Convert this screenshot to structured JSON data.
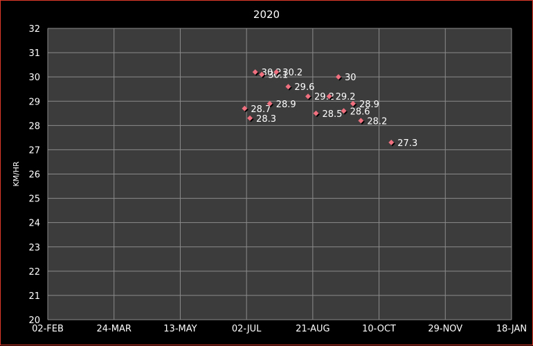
{
  "chart_data": {
    "type": "scatter",
    "title": "2020",
    "xlabel": "",
    "ylabel": "KM/HR",
    "x_ticks": [
      "02-FEB",
      "24-MAR",
      "13-MAY",
      "02-JUL",
      "21-AUG",
      "10-OCT",
      "29-NOV",
      "18-JAN"
    ],
    "xlim": [
      "2020-02-02",
      "2021-01-18"
    ],
    "ylim": [
      20,
      32
    ],
    "y_ticks": [
      20,
      21,
      22,
      23,
      24,
      25,
      26,
      27,
      28,
      29,
      30,
      31,
      32
    ],
    "grid": true,
    "legend": "none",
    "series": [
      {
        "points": [
          {
            "x": "2020-06-30",
            "y": 28.7,
            "label": "28.7"
          },
          {
            "x": "2020-07-04",
            "y": 28.3,
            "label": "28.3"
          },
          {
            "x": "2020-07-08",
            "y": 30.2,
            "label": "30.2"
          },
          {
            "x": "2020-07-13",
            "y": 30.1,
            "label": "30.1"
          },
          {
            "x": "2020-07-19",
            "y": 28.9,
            "label": "28.9"
          },
          {
            "x": "2020-07-24",
            "y": 30.2,
            "label": "30.2"
          },
          {
            "x": "2020-08-02",
            "y": 29.6,
            "label": "29.6"
          },
          {
            "x": "2020-08-17",
            "y": 29.2,
            "label": "29.2"
          },
          {
            "x": "2020-08-23",
            "y": 28.5,
            "label": "28.5"
          },
          {
            "x": "2020-09-02",
            "y": 29.2,
            "label": "29.2"
          },
          {
            "x": "2020-09-09",
            "y": 30,
            "label": "30"
          },
          {
            "x": "2020-09-13",
            "y": 28.6,
            "label": "28.6"
          },
          {
            "x": "2020-09-20",
            "y": 28.9,
            "label": "28.9"
          },
          {
            "x": "2020-09-26",
            "y": 28.2,
            "label": "28.2"
          },
          {
            "x": "2020-10-19",
            "y": 27.3,
            "label": "27.3"
          }
        ]
      }
    ]
  },
  "colors": {
    "plot_background": "#3c3c3c",
    "gridline": "#8c8c8c",
    "frame_border": "#e23a2a",
    "marker_fill": "#f07080",
    "marker_shadow": "#000000"
  }
}
